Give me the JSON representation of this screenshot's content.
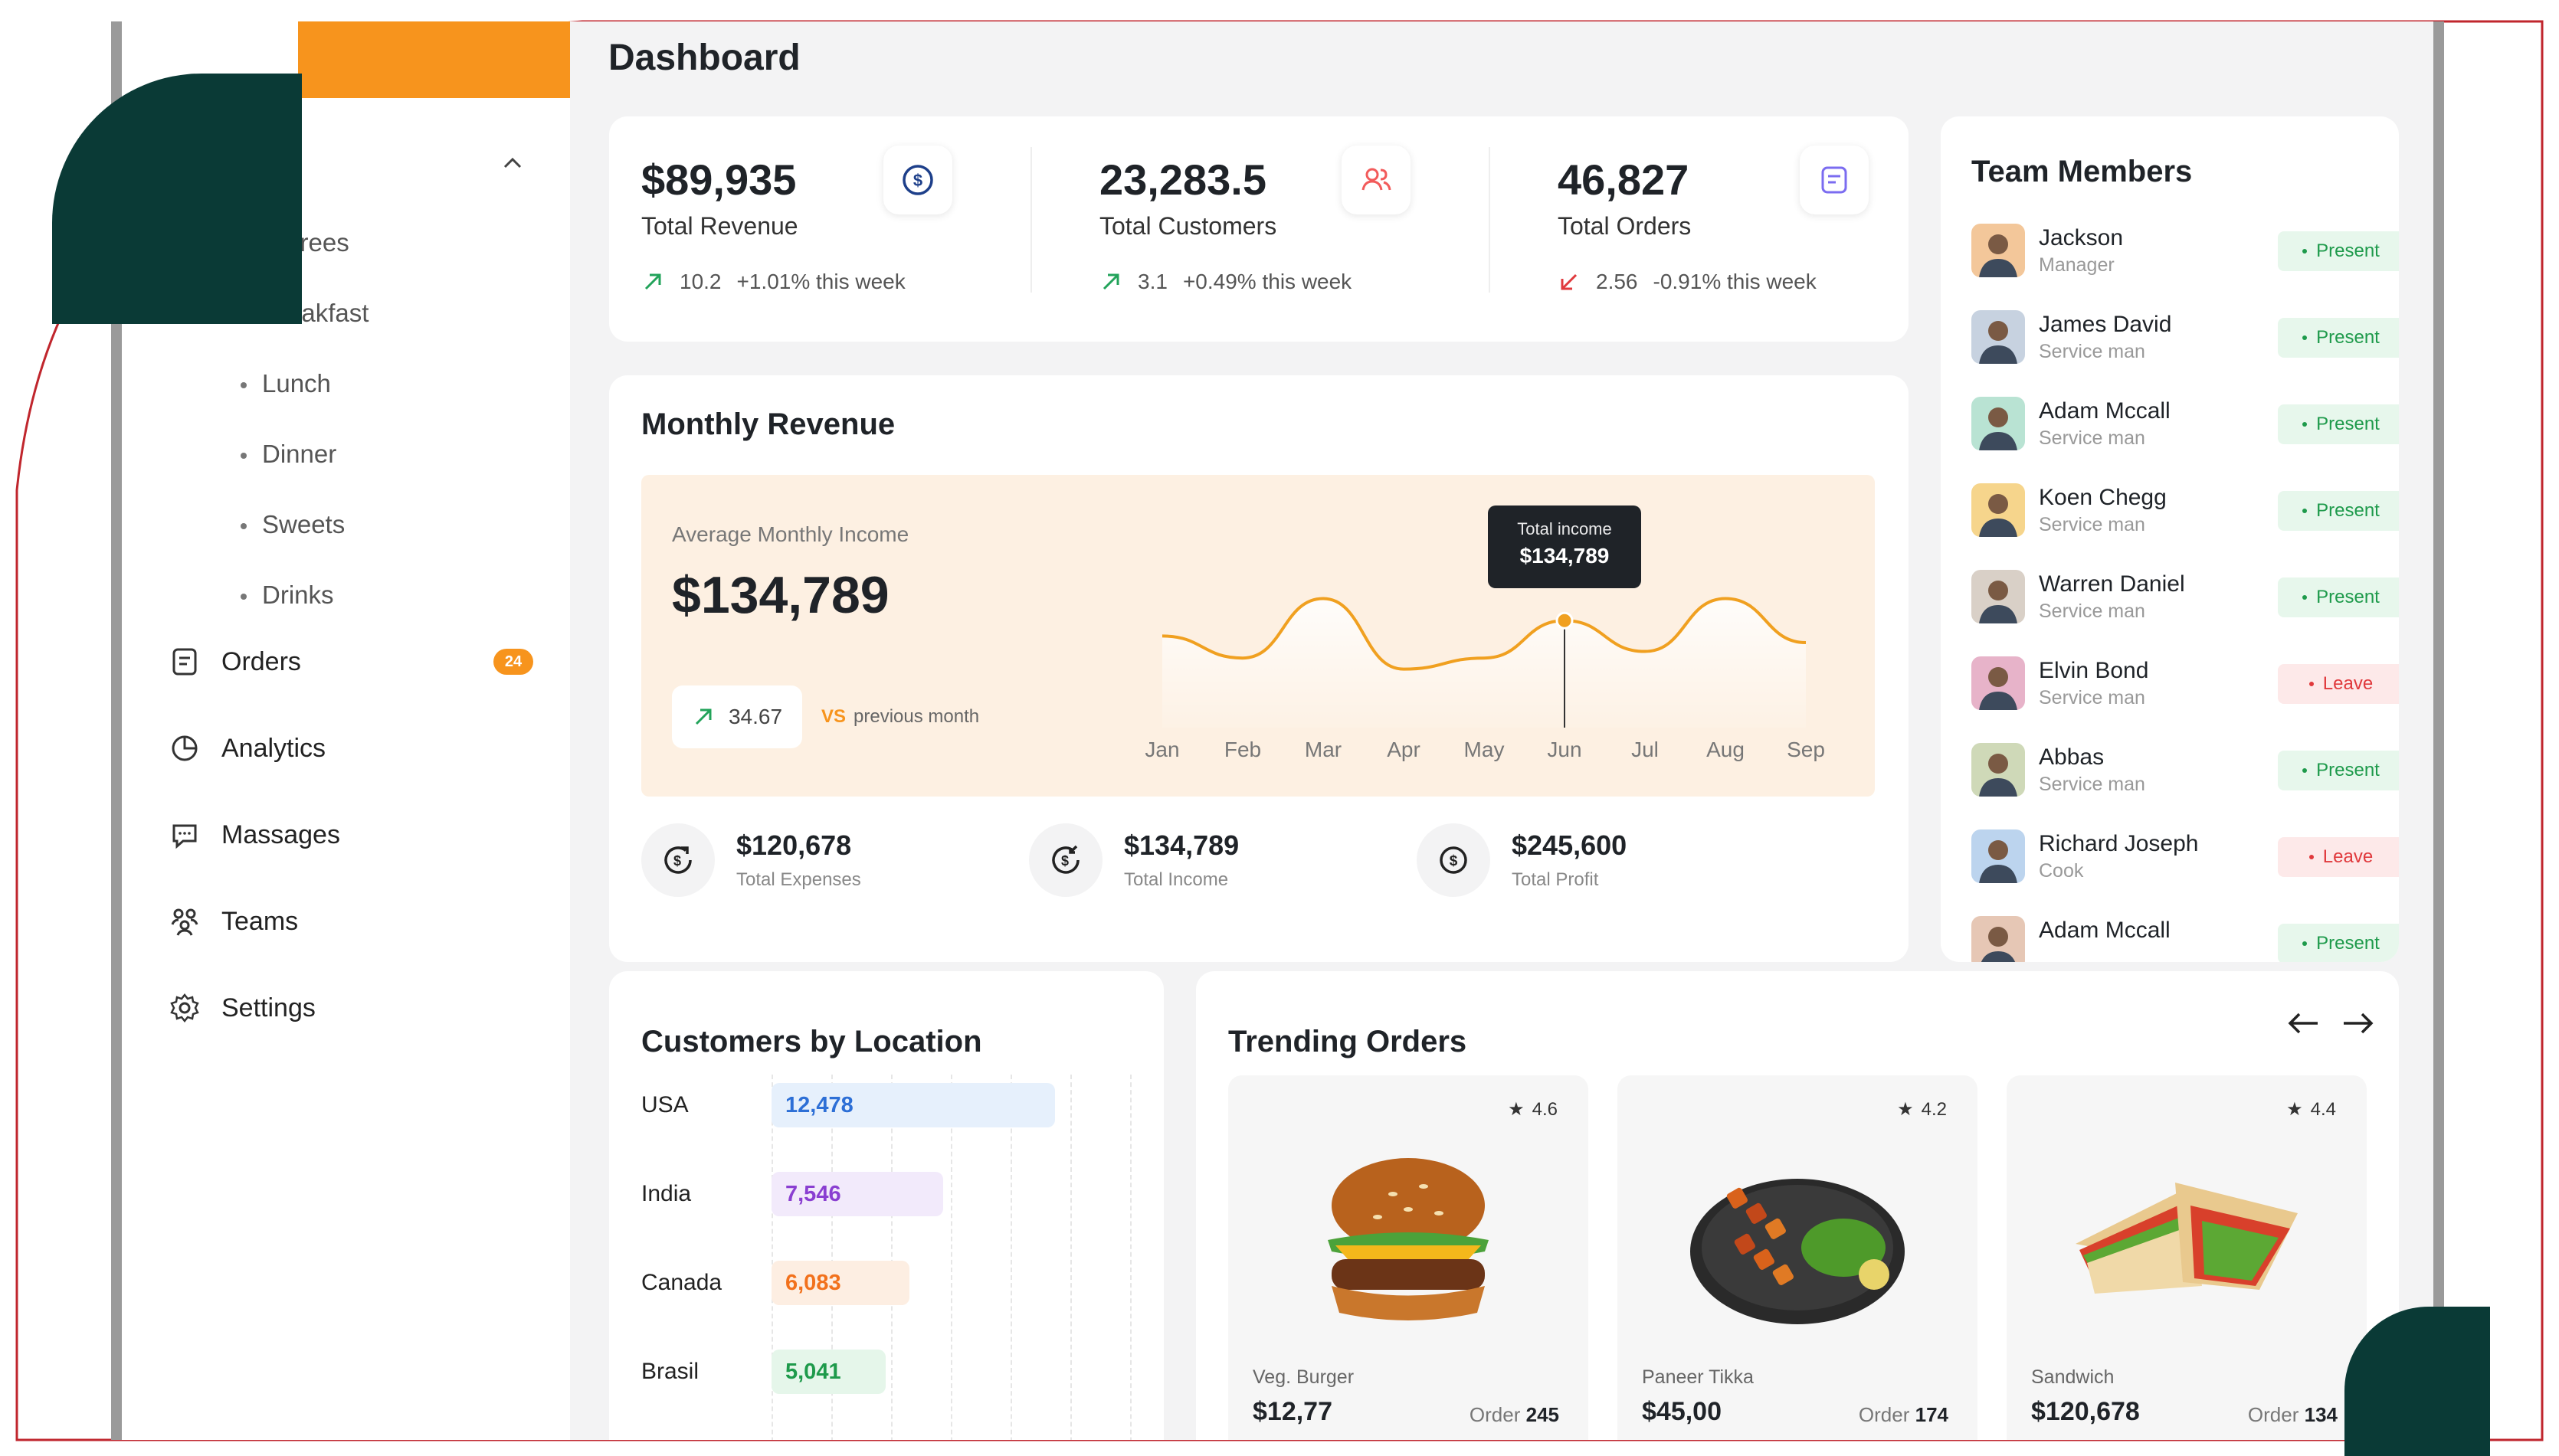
{
  "page": {
    "title": "Dashboard"
  },
  "sidebar": {
    "sub_items": [
      "Entrees",
      "Breakfast",
      "Lunch",
      "Dinner",
      "Sweets",
      "Drinks"
    ],
    "nav": [
      {
        "label": "Orders",
        "icon": "orders-icon",
        "badge": "24"
      },
      {
        "label": "Analytics",
        "icon": "pie-chart-icon"
      },
      {
        "label": "Massages",
        "icon": "message-icon"
      },
      {
        "label": "Teams",
        "icon": "team-icon"
      },
      {
        "label": "Settings",
        "icon": "gear-icon"
      }
    ]
  },
  "stats": [
    {
      "value": "$89,935",
      "label": "Total Revenue",
      "trend_value": "10.2",
      "trend_text": "+1.01% this week",
      "direction": "up",
      "icon": "dollar-icon"
    },
    {
      "value": "23,283.5",
      "label": "Total Customers",
      "trend_value": "3.1",
      "trend_text": "+0.49% this week",
      "direction": "up",
      "icon": "users-icon"
    },
    {
      "value": "46,827",
      "label": "Total Orders",
      "trend_value": "2.56",
      "trend_text": "-0.91% this week",
      "direction": "down",
      "icon": "orders-icon"
    }
  ],
  "monthly_revenue": {
    "title": "Monthly Revenue",
    "avg_label": "Average Monthly Income",
    "avg_value": "$134,789",
    "vs_value": "34.67",
    "vs_word": "VS",
    "vs_text": "previous month",
    "tooltip_label": "Total income",
    "tooltip_value": "$134,789",
    "summaries": [
      {
        "value": "$120,678",
        "label": "Total Expenses",
        "icon": "expenses-icon"
      },
      {
        "value": "$134,789",
        "label": "Total Income",
        "icon": "income-icon"
      },
      {
        "value": "$245,600",
        "label": "Total Profit",
        "icon": "dollar-icon"
      }
    ]
  },
  "chart_data": {
    "type": "line",
    "x": [
      "Jan",
      "Feb",
      "Mar",
      "Apr",
      "May",
      "Jun",
      "Jul",
      "Aug",
      "Sep"
    ],
    "series": [
      {
        "values": [
          45,
          35,
          62,
          30,
          35,
          52,
          38,
          62,
          42
        ]
      }
    ],
    "highlight": {
      "x": "Jun",
      "label": "Total income",
      "value": "$134,789"
    },
    "colors": {
      "line": "#f0a020",
      "fill": "#fdf0e2"
    }
  },
  "team": {
    "title": "Team Members",
    "members": [
      {
        "name": "Jackson",
        "role": "Manager",
        "status": "Present"
      },
      {
        "name": "James David",
        "role": "Service man",
        "status": "Present"
      },
      {
        "name": "Adam Mccall",
        "role": "Service man",
        "status": "Present"
      },
      {
        "name": "Koen Chegg",
        "role": "Service man",
        "status": "Present"
      },
      {
        "name": "Warren Daniel",
        "role": "Service man",
        "status": "Present"
      },
      {
        "name": "Elvin Bond",
        "role": "Service man",
        "status": "Leave"
      },
      {
        "name": "Abbas",
        "role": "Service man",
        "status": "Present"
      },
      {
        "name": "Richard Joseph",
        "role": "Cook",
        "status": "Leave"
      },
      {
        "name": "Adam Mccall",
        "role": "",
        "status": "Present"
      }
    ]
  },
  "locations": {
    "title": "Customers by Location",
    "rows": [
      {
        "country": "USA",
        "value": "12,478",
        "count": 12478,
        "color": "#2d6fd6",
        "bg": "#e6f0fc"
      },
      {
        "country": "India",
        "value": "7,546",
        "count": 7546,
        "color": "#8a3fd1",
        "bg": "#f2eafb"
      },
      {
        "country": "Canada",
        "value": "6,083",
        "count": 6083,
        "color": "#f2711c",
        "bg": "#fdeee2"
      },
      {
        "country": "Brasil",
        "value": "5,041",
        "count": 5041,
        "color": "#1e9a4b",
        "bg": "#e5f6ea"
      }
    ]
  },
  "trending": {
    "title": "Trending Orders",
    "order_word": "Order",
    "items": [
      {
        "name": "Veg. Burger",
        "price": "$12,77",
        "rating": "4.6",
        "orders": "245"
      },
      {
        "name": "Paneer Tikka",
        "price": "$45,00",
        "rating": "4.2",
        "orders": "174"
      },
      {
        "name": "Sandwich",
        "price": "$120,678",
        "rating": "4.4",
        "orders": "134"
      }
    ]
  },
  "colors": {
    "accent": "#f7941d",
    "frame_red": "#c0262d",
    "deco_dark": "#0a3a36"
  }
}
